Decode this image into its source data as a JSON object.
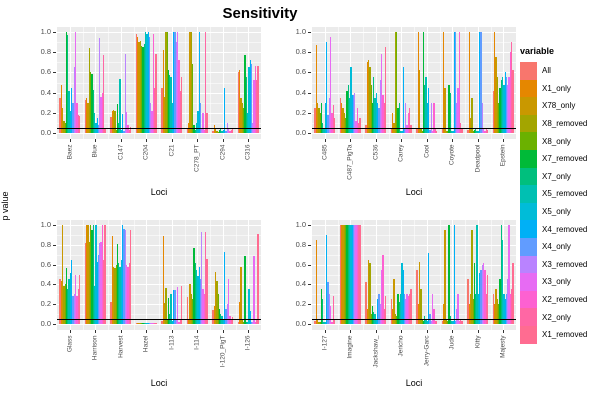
{
  "title": "Sensitivity",
  "axes": {
    "y_label": "p value",
    "x_label": "Loci",
    "y_ticks": [
      "0.0",
      "0.2",
      "0.4",
      "0.6",
      "0.8",
      "1.0"
    ]
  },
  "legend": {
    "title": "variable"
  },
  "colors": {
    "panel_background": "#EBEBEB",
    "gridline": "#FFFFFF",
    "reference_line": "#000000",
    "tick_text": "#4D4D4D"
  },
  "chart_data": {
    "type": "bar",
    "title": "Sensitivity",
    "xlabel": "Loci",
    "ylabel": "p value",
    "ylim": [
      0,
      1
    ],
    "reference_line_y": 0.05,
    "grid": true,
    "legend_position": "right",
    "series": [
      {
        "name": "All",
        "color": "#F8766D"
      },
      {
        "name": "X1_only",
        "color": "#E58700"
      },
      {
        "name": "X78_only",
        "color": "#C99800"
      },
      {
        "name": "X8_removed",
        "color": "#A3A500"
      },
      {
        "name": "X8_only",
        "color": "#6BB100"
      },
      {
        "name": "X7_removed",
        "color": "#00BA38"
      },
      {
        "name": "X7_only",
        "color": "#00BF7D"
      },
      {
        "name": "X5_removed",
        "color": "#00C0B2"
      },
      {
        "name": "X5_only",
        "color": "#00BCD8"
      },
      {
        "name": "X4_removed",
        "color": "#00B0F6"
      },
      {
        "name": "X4_only",
        "color": "#619CFF"
      },
      {
        "name": "X3_removed",
        "color": "#B983FF"
      },
      {
        "name": "X3_only",
        "color": "#E76BF3"
      },
      {
        "name": "X2_removed",
        "color": "#FD61D1"
      },
      {
        "name": "X2_only",
        "color": "#FF67A4"
      },
      {
        "name": "X1_removed",
        "color": "#FF6C91"
      }
    ],
    "panels": [
      {
        "name": "panel-top-left",
        "categories": [
          "Baez",
          "Blue",
          "C147",
          "C204",
          "C21",
          "C278_PT",
          "C294",
          "C316"
        ],
        "values": [
          [
            0.35,
            0.48,
            0.25,
            0.12,
            0.1,
            1.0,
            0.97,
            0.42,
            0.22,
            0.45,
            0.3,
            0.65,
            1.0,
            0.3,
            0.18,
            0.17
          ],
          [
            0.33,
            0.35,
            0.3,
            0.84,
            0.6,
            0.58,
            0.43,
            0.2,
            0.1,
            0.15,
            0.08,
            0.94,
            0.36,
            0.4,
            0.77,
            0.05
          ],
          [
            0.16,
            0.22,
            0.23,
            0.22,
            0.03,
            0.29,
            0.1,
            0.53,
            0.03,
            0.19,
            0.02,
            0.78,
            0.21,
            0.08,
            0.03,
            0.06
          ],
          [
            0.98,
            0.95,
            0.9,
            0.91,
            0.86,
            0.85,
            0.88,
            1.0,
            0.98,
            1.0,
            0.95,
            0.3,
            0.22,
            0.98,
            0.45,
            0.78
          ],
          [
            0.45,
            0.82,
            0.36,
            1.0,
            1.0,
            0.62,
            0.57,
            0.55,
            0.3,
            1.0,
            1.0,
            0.9,
            1.0,
            0.72,
            0.42,
            0.55
          ],
          [
            0.05,
            0.1,
            1.0,
            1.0,
            0.68,
            0.08,
            0.03,
            0.1,
            0.22,
            1.0,
            0.3,
            0.05,
            0.2,
            0.03,
            1.0,
            0.2
          ],
          [
            0.02,
            0.08,
            0.05,
            0.02,
            0.01,
            0.03,
            0.05,
            0.02,
            0.03,
            0.45,
            0.02,
            0.1,
            0.05,
            0.02,
            0.03,
            0.04
          ],
          [
            0.6,
            0.62,
            0.35,
            0.3,
            0.25,
            0.77,
            0.55,
            0.2,
            0.65,
            0.72,
            0.68,
            0.1,
            0.52,
            0.66,
            0.52,
            0.66
          ]
        ]
      },
      {
        "name": "panel-top-right",
        "categories": [
          "C485",
          "C487_PigTa",
          "C536",
          "Carey",
          "Cool",
          "Coyote",
          "Deadpool",
          "Epstein"
        ],
        "values": [
          [
            0.25,
            0.87,
            0.3,
            0.25,
            0.2,
            0.3,
            0.1,
            0.05,
            0.3,
            0.9,
            0.18,
            0.35,
            0.95,
            0.2,
            0.28,
            0.15
          ],
          [
            0.35,
            0.3,
            0.25,
            0.2,
            0.15,
            0.42,
            0.48,
            0.35,
            0.65,
            0.38,
            0.38,
            0.4,
            0.12,
            0.25,
            0.1,
            0.15
          ],
          [
            0.08,
            0.7,
            0.72,
            0.65,
            0.48,
            0.3,
            0.55,
            0.35,
            0.4,
            0.3,
            0.25,
            0.52,
            0.78,
            0.38,
            0.3,
            0.85
          ],
          [
            0.05,
            0.2,
            0.1,
            1.0,
            1.0,
            0.25,
            0.3,
            0.02,
            0.02,
            0.65,
            0.05,
            0.3,
            0.08,
            0.2,
            0.25,
            0.08
          ],
          [
            0.05,
            1.0,
            0.62,
            0.05,
            0.02,
            1.0,
            0.48,
            0.55,
            0.3,
            0.45,
            0.03,
            0.3,
            0.02,
            0.3,
            0.05,
            0.02
          ],
          [
            0.05,
            1.0,
            0.45,
            0.02,
            0.02,
            0.48,
            0.4,
            0.02,
            0.02,
            1.0,
            1.0,
            0.3,
            0.45,
            1.0,
            0.1,
            0.05
          ],
          [
            0.03,
            1.0,
            0.15,
            0.35,
            0.02,
            0.03,
            0.05,
            0.02,
            0.02,
            1.0,
            1.0,
            0.3,
            0.05,
            0.02,
            0.05,
            0.03
          ],
          [
            0.42,
            1.0,
            0.75,
            0.55,
            0.3,
            0.45,
            0.52,
            0.55,
            0.48,
            0.6,
            0.55,
            0.48,
            0.55,
            0.8,
            0.9,
            0.62
          ]
        ]
      },
      {
        "name": "panel-bottom-left",
        "categories": [
          "Glass",
          "Harrison",
          "Harvest",
          "Hazel",
          "I-113",
          "I-114",
          "I-120_PigT",
          "I-126"
        ],
        "values": [
          [
            0.45,
            0.43,
            1.0,
            0.38,
            0.4,
            0.57,
            0.35,
            0.45,
            0.52,
            0.65,
            0.28,
            0.3,
            0.5,
            0.28,
            0.35,
            0.5
          ],
          [
            0.82,
            1.0,
            1.0,
            0.83,
            1.0,
            0.95,
            1.0,
            0.38,
            1.0,
            0.63,
            0.7,
            0.82,
            0.83,
            1.0,
            0.65,
            1.0
          ],
          [
            0.22,
            0.89,
            0.58,
            0.57,
            0.6,
            0.81,
            0.62,
            0.58,
            0.65,
            1.0,
            0.96,
            0.95,
            0.6,
            0.58,
            0.62,
            0.95
          ],
          [
            0.01,
            0.01,
            0.01,
            0.01,
            0.01,
            0.01,
            0.01,
            0.01,
            0.01,
            0.01,
            0.01,
            0.01,
            0.01,
            0.01,
            0.01,
            0.01
          ],
          [
            0.03,
            0.89,
            0.21,
            0.36,
            0.05,
            0.26,
            0.1,
            0.3,
            0.03,
            0.34,
            0.34,
            0.05,
            0.37,
            0.02,
            0.05,
            0.38
          ],
          [
            0.27,
            0.05,
            0.4,
            0.3,
            0.25,
            0.77,
            0.62,
            0.55,
            0.48,
            0.58,
            0.45,
            0.93,
            0.35,
            0.3,
            0.93,
            0.66
          ],
          [
            0.14,
            0.18,
            0.53,
            0.43,
            0.3,
            0.15,
            0.1,
            0.08,
            0.05,
            0.73,
            0.15,
            0.2,
            0.45,
            0.08,
            0.05,
            0.07
          ],
          [
            0.02,
            0.22,
            0.58,
            0.05,
            0.02,
            0.69,
            0.02,
            0.02,
            0.35,
            0.13,
            0.02,
            0.02,
            0.69,
            0.02,
            0.05,
            0.91
          ]
        ]
      },
      {
        "name": "panel-bottom-right",
        "categories": [
          "I-127",
          "Imagine",
          "Jackshaw_",
          "Jericho",
          "Jerry-Garc",
          "Jude",
          "Kitty",
          "Majesty"
        ],
        "values": [
          [
            0.03,
            0.85,
            0.05,
            0.02,
            0.02,
            0.35,
            0.25,
            0.02,
            0.02,
            0.9,
            0.42,
            0.3,
            0.18,
            0.02,
            0.28,
            0.05
          ],
          [
            1.0,
            1.0,
            1.0,
            1.0,
            1.0,
            1.0,
            1.0,
            1.0,
            1.0,
            1.0,
            1.0,
            1.0,
            1.0,
            1.0,
            1.0,
            1.0
          ],
          [
            0.42,
            0.15,
            0.65,
            0.62,
            0.1,
            0.18,
            0.12,
            0.1,
            0.05,
            0.25,
            0.3,
            0.2,
            0.55,
            0.7,
            0.15,
            0.28
          ],
          [
            0.25,
            0.15,
            0.45,
            0.1,
            0.08,
            0.3,
            0.22,
            0.3,
            0.62,
            0.55,
            0.3,
            0.25,
            0.3,
            0.28,
            0.3,
            0.35
          ],
          [
            0.55,
            0.2,
            0.63,
            0.35,
            0.05,
            0.03,
            0.08,
            0.05,
            0.03,
            0.72,
            0.1,
            0.03,
            0.3,
            0.15,
            0.03,
            0.03
          ],
          [
            0.03,
            0.2,
            0.95,
            0.05,
            0.03,
            1.0,
            0.08,
            0.03,
            0.03,
            1.0,
            0.03,
            0.15,
            0.3,
            0.03,
            0.05,
            0.03
          ],
          [
            0.45,
            0.2,
            0.3,
            0.95,
            0.25,
            0.62,
            0.3,
            1.0,
            0.3,
            0.52,
            0.55,
            0.6,
            0.62,
            0.55,
            0.3,
            0.5
          ],
          [
            0.3,
            0.2,
            0.35,
            0.25,
            0.2,
            0.45,
            1.0,
            0.85,
            0.3,
            0.25,
            0.3,
            0.45,
            1.0,
            0.3,
            0.35,
            0.62
          ]
        ]
      }
    ]
  }
}
